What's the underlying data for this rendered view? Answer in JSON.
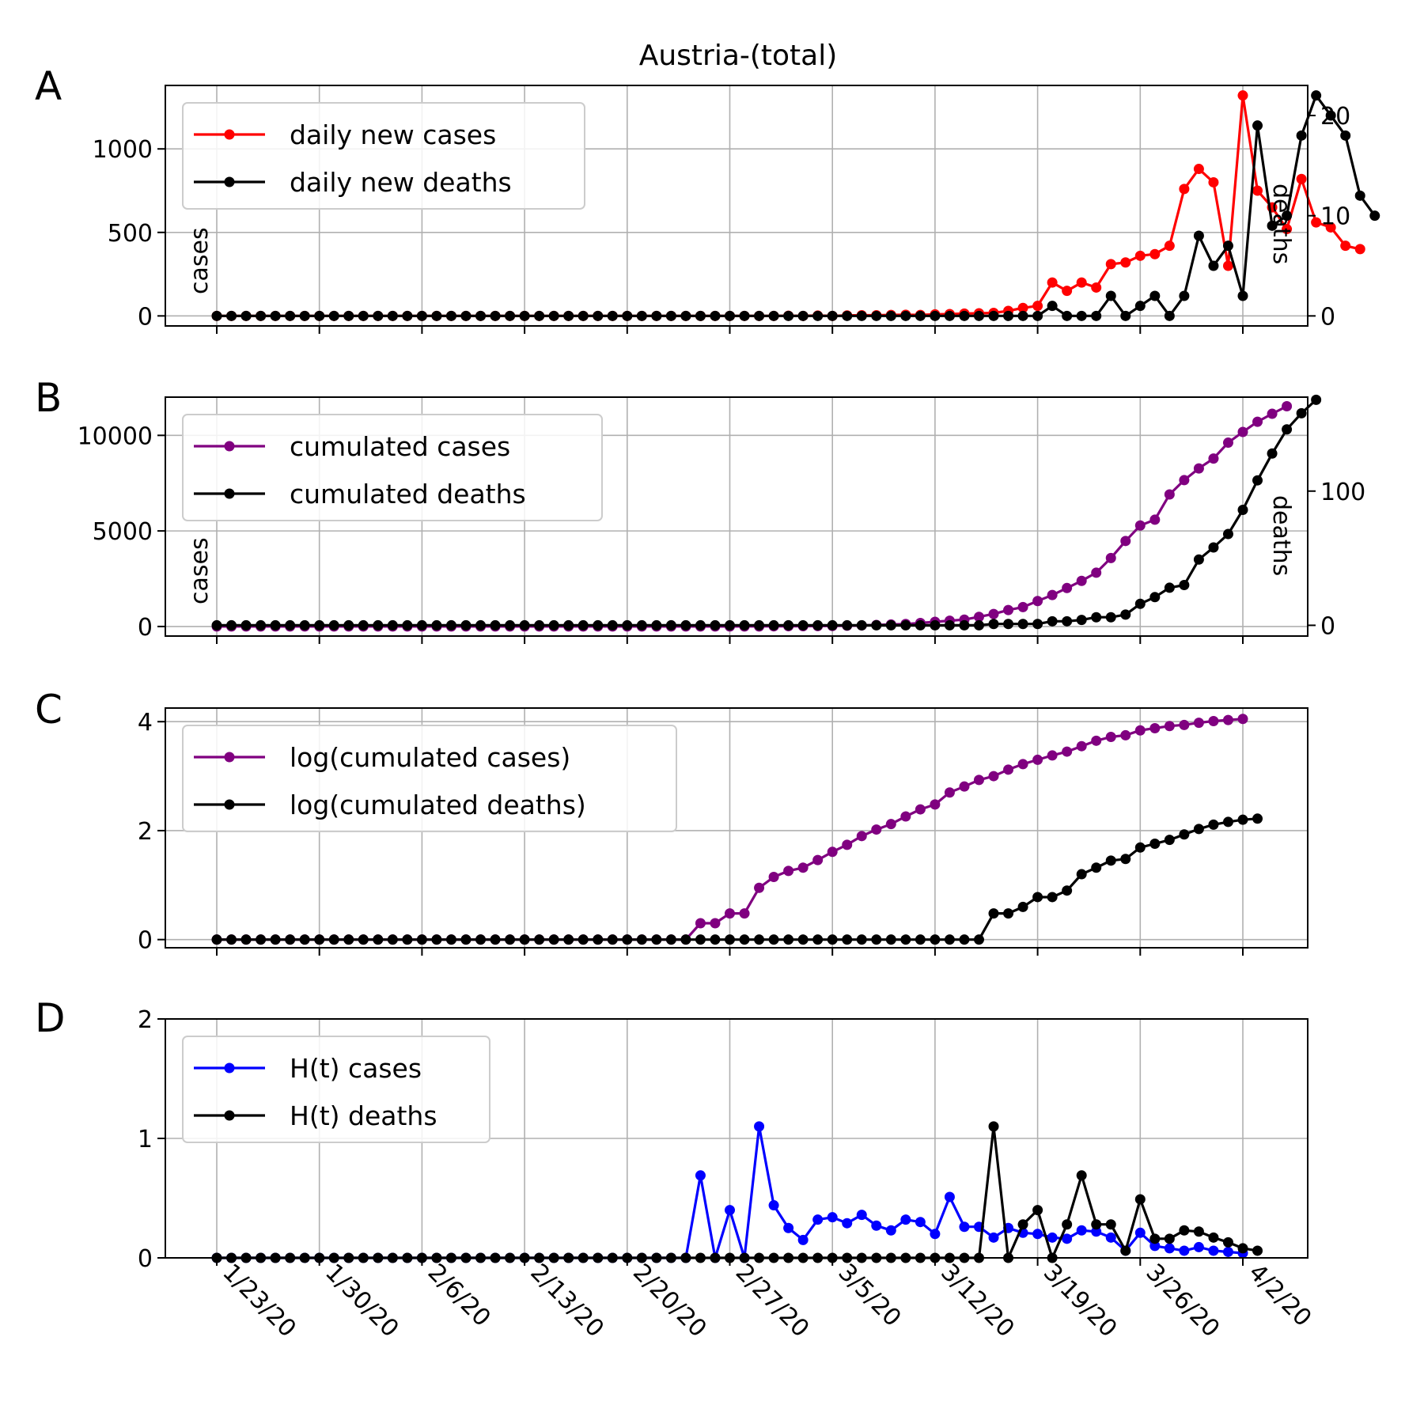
{
  "title": "Austria-(total)",
  "x_ticks": [
    "1/23/20",
    "1/30/20",
    "2/6/20",
    "2/13/20",
    "2/20/20",
    "2/27/20",
    "3/5/20",
    "3/12/20",
    "3/19/20",
    "3/26/20",
    "4/2/20"
  ],
  "chart_data": [
    {
      "panel": "A",
      "type": "line",
      "x_start": "1/23/20",
      "x_end": "4/3/20",
      "left_ylabel": "cases",
      "right_ylabel": "deaths",
      "left_ylim": [
        -60,
        1380
      ],
      "right_ylim": [
        -1,
        23
      ],
      "left_yticks": [
        0,
        500,
        1000
      ],
      "right_yticks": [
        0,
        10,
        20
      ],
      "grid": true,
      "legend_position": "upper-left",
      "series": [
        {
          "name": "daily new cases",
          "axis": "left",
          "color": "#ff0000",
          "values": [
            0,
            0,
            0,
            0,
            0,
            0,
            0,
            0,
            0,
            0,
            0,
            0,
            0,
            0,
            0,
            0,
            0,
            0,
            0,
            0,
            0,
            0,
            0,
            0,
            0,
            0,
            0,
            0,
            0,
            0,
            0,
            0,
            0,
            0,
            0,
            0,
            0,
            0,
            0,
            1,
            0,
            2,
            0,
            3,
            4,
            4,
            6,
            7,
            6,
            9,
            11,
            14,
            16,
            18,
            30,
            48,
            60,
            200,
            150,
            200,
            170,
            310,
            320,
            360,
            370,
            420,
            760,
            880,
            800,
            300,
            1320,
            750,
            650,
            520,
            820,
            560,
            530,
            420,
            400
          ]
        },
        {
          "name": "daily new deaths",
          "axis": "right",
          "color": "#000000",
          "values": [
            0,
            0,
            0,
            0,
            0,
            0,
            0,
            0,
            0,
            0,
            0,
            0,
            0,
            0,
            0,
            0,
            0,
            0,
            0,
            0,
            0,
            0,
            0,
            0,
            0,
            0,
            0,
            0,
            0,
            0,
            0,
            0,
            0,
            0,
            0,
            0,
            0,
            0,
            0,
            0,
            0,
            0,
            0,
            0,
            0,
            0,
            0,
            0,
            0,
            0,
            0,
            0,
            0,
            0,
            0,
            0,
            0,
            1,
            0,
            0,
            0,
            2,
            0,
            1,
            2,
            0,
            2,
            8,
            5,
            7,
            2,
            19,
            9,
            10,
            18,
            22,
            20,
            18,
            12,
            10
          ]
        }
      ]
    },
    {
      "panel": "B",
      "type": "line",
      "x_start": "1/23/20",
      "x_end": "4/3/20",
      "left_ylabel": "cases",
      "right_ylabel": "deaths",
      "left_ylim": [
        -500,
        12000
      ],
      "right_ylim": [
        -8,
        170
      ],
      "left_yticks": [
        0,
        5000,
        10000
      ],
      "right_yticks": [
        0,
        100
      ],
      "grid": true,
      "legend_position": "upper-left",
      "series": [
        {
          "name": "cumulated cases",
          "axis": "left",
          "color": "#800080",
          "values": [
            0,
            0,
            0,
            0,
            0,
            0,
            0,
            0,
            0,
            0,
            0,
            0,
            0,
            0,
            0,
            0,
            0,
            0,
            0,
            0,
            0,
            0,
            0,
            0,
            0,
            0,
            0,
            0,
            0,
            0,
            0,
            0,
            0,
            0,
            2,
            2,
            3,
            3,
            9,
            14,
            18,
            21,
            29,
            41,
            55,
            79,
            104,
            131,
            182,
            246,
            302,
            361,
            504,
            655,
            860,
            1016,
            1332,
            1646,
            2013,
            2388,
            2814,
            3582,
            4474,
            5283,
            5588,
            6909,
            7657,
            8271,
            8788,
            9618,
            10180,
            10711,
            11129,
            11525
          ]
        },
        {
          "name": "cumulated deaths",
          "axis": "right",
          "color": "#000000",
          "values": [
            0,
            0,
            0,
            0,
            0,
            0,
            0,
            0,
            0,
            0,
            0,
            0,
            0,
            0,
            0,
            0,
            0,
            0,
            0,
            0,
            0,
            0,
            0,
            0,
            0,
            0,
            0,
            0,
            0,
            0,
            0,
            0,
            0,
            0,
            0,
            0,
            0,
            0,
            0,
            0,
            0,
            0,
            0,
            0,
            0,
            0,
            0,
            0,
            0,
            0,
            0,
            0,
            0,
            1,
            1,
            1,
            1,
            3,
            3,
            4,
            6,
            6,
            8,
            16,
            21,
            28,
            30,
            49,
            58,
            68,
            86,
            108,
            128,
            146,
            158,
            168
          ]
        }
      ]
    },
    {
      "panel": "C",
      "type": "line",
      "x_start": "1/23/20",
      "x_end": "4/3/20",
      "left_ylim": [
        -0.15,
        4.25
      ],
      "left_yticks": [
        0,
        2,
        4
      ],
      "grid": true,
      "legend_position": "upper-left",
      "series": [
        {
          "name": "log(cumulated cases)",
          "axis": "left",
          "color": "#800080",
          "values": [
            0,
            0,
            0,
            0,
            0,
            0,
            0,
            0,
            0,
            0,
            0,
            0,
            0,
            0,
            0,
            0,
            0,
            0,
            0,
            0,
            0,
            0,
            0,
            0,
            0,
            0,
            0,
            0,
            0,
            0,
            0,
            0,
            0,
            0.3,
            0.3,
            0.48,
            0.48,
            0.95,
            1.15,
            1.26,
            1.32,
            1.46,
            1.61,
            1.74,
            1.9,
            2.02,
            2.12,
            2.26,
            2.39,
            2.48,
            2.7,
            2.81,
            2.93,
            3.0,
            3.12,
            3.22,
            3.3,
            3.38,
            3.45,
            3.55,
            3.65,
            3.72,
            3.75,
            3.84,
            3.88,
            3.92,
            3.94,
            3.98,
            4.01,
            4.03,
            4.05
          ]
        },
        {
          "name": "log(cumulated deaths)",
          "axis": "left",
          "color": "#000000",
          "values": [
            0,
            0,
            0,
            0,
            0,
            0,
            0,
            0,
            0,
            0,
            0,
            0,
            0,
            0,
            0,
            0,
            0,
            0,
            0,
            0,
            0,
            0,
            0,
            0,
            0,
            0,
            0,
            0,
            0,
            0,
            0,
            0,
            0,
            0,
            0,
            0,
            0,
            0,
            0,
            0,
            0,
            0,
            0,
            0,
            0,
            0,
            0,
            0,
            0,
            0,
            0,
            0,
            0,
            0.48,
            0.48,
            0.6,
            0.78,
            0.78,
            0.9,
            1.2,
            1.32,
            1.45,
            1.48,
            1.69,
            1.76,
            1.83,
            1.93,
            2.03,
            2.11,
            2.16,
            2.2,
            2.22
          ]
        }
      ]
    },
    {
      "panel": "D",
      "type": "line",
      "x_start": "1/23/20",
      "x_end": "4/3/20",
      "left_ylim": [
        0,
        2
      ],
      "left_yticks": [
        0,
        1,
        2
      ],
      "grid": true,
      "legend_position": "upper-left",
      "series": [
        {
          "name": "H(t) cases",
          "axis": "left",
          "color": "#0000ff",
          "values": [
            0,
            0,
            0,
            0,
            0,
            0,
            0,
            0,
            0,
            0,
            0,
            0,
            0,
            0,
            0,
            0,
            0,
            0,
            0,
            0,
            0,
            0,
            0,
            0,
            0,
            0,
            0,
            0,
            0,
            0,
            0,
            0,
            0,
            0.69,
            0,
            0.4,
            0,
            1.1,
            0.44,
            0.25,
            0.15,
            0.32,
            0.34,
            0.29,
            0.36,
            0.27,
            0.23,
            0.32,
            0.3,
            0.2,
            0.51,
            0.26,
            0.26,
            0.17,
            0.25,
            0.21,
            0.2,
            0.17,
            0.16,
            0.23,
            0.22,
            0.17,
            0.06,
            0.21,
            0.1,
            0.08,
            0.06,
            0.09,
            0.06,
            0.05,
            0.04
          ]
        },
        {
          "name": "H(t) deaths",
          "axis": "left",
          "color": "#000000",
          "values": [
            0,
            0,
            0,
            0,
            0,
            0,
            0,
            0,
            0,
            0,
            0,
            0,
            0,
            0,
            0,
            0,
            0,
            0,
            0,
            0,
            0,
            0,
            0,
            0,
            0,
            0,
            0,
            0,
            0,
            0,
            0,
            0,
            0,
            0,
            0,
            0,
            0,
            0,
            0,
            0,
            0,
            0,
            0,
            0,
            0,
            0,
            0,
            0,
            0,
            0,
            0,
            0,
            0,
            1.1,
            0,
            0.28,
            0.4,
            0,
            0.28,
            0.69,
            0.28,
            0.28,
            0.06,
            0.49,
            0.16,
            0.16,
            0.23,
            0.22,
            0.17,
            0.13,
            0.08,
            0.06
          ]
        }
      ]
    }
  ]
}
